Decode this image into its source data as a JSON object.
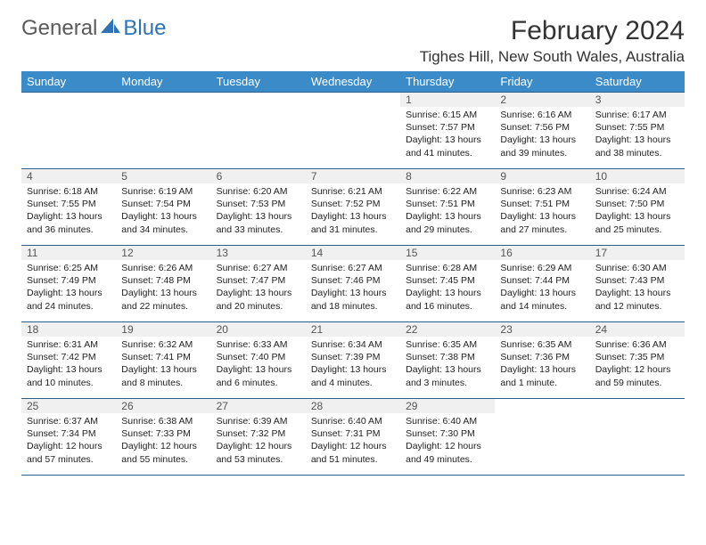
{
  "brand": {
    "text1": "General",
    "text2": "Blue",
    "color1": "#777777",
    "color2": "#2f73b5"
  },
  "title": "February 2024",
  "location": "Tighes Hill, New South Wales, Australia",
  "header_bg": "#3b8bc9",
  "header_text": "#ffffff",
  "day_border": "#2b5e8a",
  "daynum_bg": "#f0f0f0",
  "weekdays": [
    "Sunday",
    "Monday",
    "Tuesday",
    "Wednesday",
    "Thursday",
    "Friday",
    "Saturday"
  ],
  "weeks": [
    [
      {
        "n": "",
        "lines": []
      },
      {
        "n": "",
        "lines": []
      },
      {
        "n": "",
        "lines": []
      },
      {
        "n": "",
        "lines": []
      },
      {
        "n": "1",
        "lines": [
          "Sunrise: 6:15 AM",
          "Sunset: 7:57 PM",
          "Daylight: 13 hours and 41 minutes."
        ]
      },
      {
        "n": "2",
        "lines": [
          "Sunrise: 6:16 AM",
          "Sunset: 7:56 PM",
          "Daylight: 13 hours and 39 minutes."
        ]
      },
      {
        "n": "3",
        "lines": [
          "Sunrise: 6:17 AM",
          "Sunset: 7:55 PM",
          "Daylight: 13 hours and 38 minutes."
        ]
      }
    ],
    [
      {
        "n": "4",
        "lines": [
          "Sunrise: 6:18 AM",
          "Sunset: 7:55 PM",
          "Daylight: 13 hours and 36 minutes."
        ]
      },
      {
        "n": "5",
        "lines": [
          "Sunrise: 6:19 AM",
          "Sunset: 7:54 PM",
          "Daylight: 13 hours and 34 minutes."
        ]
      },
      {
        "n": "6",
        "lines": [
          "Sunrise: 6:20 AM",
          "Sunset: 7:53 PM",
          "Daylight: 13 hours and 33 minutes."
        ]
      },
      {
        "n": "7",
        "lines": [
          "Sunrise: 6:21 AM",
          "Sunset: 7:52 PM",
          "Daylight: 13 hours and 31 minutes."
        ]
      },
      {
        "n": "8",
        "lines": [
          "Sunrise: 6:22 AM",
          "Sunset: 7:51 PM",
          "Daylight: 13 hours and 29 minutes."
        ]
      },
      {
        "n": "9",
        "lines": [
          "Sunrise: 6:23 AM",
          "Sunset: 7:51 PM",
          "Daylight: 13 hours and 27 minutes."
        ]
      },
      {
        "n": "10",
        "lines": [
          "Sunrise: 6:24 AM",
          "Sunset: 7:50 PM",
          "Daylight: 13 hours and 25 minutes."
        ]
      }
    ],
    [
      {
        "n": "11",
        "lines": [
          "Sunrise: 6:25 AM",
          "Sunset: 7:49 PM",
          "Daylight: 13 hours and 24 minutes."
        ]
      },
      {
        "n": "12",
        "lines": [
          "Sunrise: 6:26 AM",
          "Sunset: 7:48 PM",
          "Daylight: 13 hours and 22 minutes."
        ]
      },
      {
        "n": "13",
        "lines": [
          "Sunrise: 6:27 AM",
          "Sunset: 7:47 PM",
          "Daylight: 13 hours and 20 minutes."
        ]
      },
      {
        "n": "14",
        "lines": [
          "Sunrise: 6:27 AM",
          "Sunset: 7:46 PM",
          "Daylight: 13 hours and 18 minutes."
        ]
      },
      {
        "n": "15",
        "lines": [
          "Sunrise: 6:28 AM",
          "Sunset: 7:45 PM",
          "Daylight: 13 hours and 16 minutes."
        ]
      },
      {
        "n": "16",
        "lines": [
          "Sunrise: 6:29 AM",
          "Sunset: 7:44 PM",
          "Daylight: 13 hours and 14 minutes."
        ]
      },
      {
        "n": "17",
        "lines": [
          "Sunrise: 6:30 AM",
          "Sunset: 7:43 PM",
          "Daylight: 13 hours and 12 minutes."
        ]
      }
    ],
    [
      {
        "n": "18",
        "lines": [
          "Sunrise: 6:31 AM",
          "Sunset: 7:42 PM",
          "Daylight: 13 hours and 10 minutes."
        ]
      },
      {
        "n": "19",
        "lines": [
          "Sunrise: 6:32 AM",
          "Sunset: 7:41 PM",
          "Daylight: 13 hours and 8 minutes."
        ]
      },
      {
        "n": "20",
        "lines": [
          "Sunrise: 6:33 AM",
          "Sunset: 7:40 PM",
          "Daylight: 13 hours and 6 minutes."
        ]
      },
      {
        "n": "21",
        "lines": [
          "Sunrise: 6:34 AM",
          "Sunset: 7:39 PM",
          "Daylight: 13 hours and 4 minutes."
        ]
      },
      {
        "n": "22",
        "lines": [
          "Sunrise: 6:35 AM",
          "Sunset: 7:38 PM",
          "Daylight: 13 hours and 3 minutes."
        ]
      },
      {
        "n": "23",
        "lines": [
          "Sunrise: 6:35 AM",
          "Sunset: 7:36 PM",
          "Daylight: 13 hours and 1 minute."
        ]
      },
      {
        "n": "24",
        "lines": [
          "Sunrise: 6:36 AM",
          "Sunset: 7:35 PM",
          "Daylight: 12 hours and 59 minutes."
        ]
      }
    ],
    [
      {
        "n": "25",
        "lines": [
          "Sunrise: 6:37 AM",
          "Sunset: 7:34 PM",
          "Daylight: 12 hours and 57 minutes."
        ]
      },
      {
        "n": "26",
        "lines": [
          "Sunrise: 6:38 AM",
          "Sunset: 7:33 PM",
          "Daylight: 12 hours and 55 minutes."
        ]
      },
      {
        "n": "27",
        "lines": [
          "Sunrise: 6:39 AM",
          "Sunset: 7:32 PM",
          "Daylight: 12 hours and 53 minutes."
        ]
      },
      {
        "n": "28",
        "lines": [
          "Sunrise: 6:40 AM",
          "Sunset: 7:31 PM",
          "Daylight: 12 hours and 51 minutes."
        ]
      },
      {
        "n": "29",
        "lines": [
          "Sunrise: 6:40 AM",
          "Sunset: 7:30 PM",
          "Daylight: 12 hours and 49 minutes."
        ]
      },
      {
        "n": "",
        "lines": []
      },
      {
        "n": "",
        "lines": []
      }
    ]
  ]
}
